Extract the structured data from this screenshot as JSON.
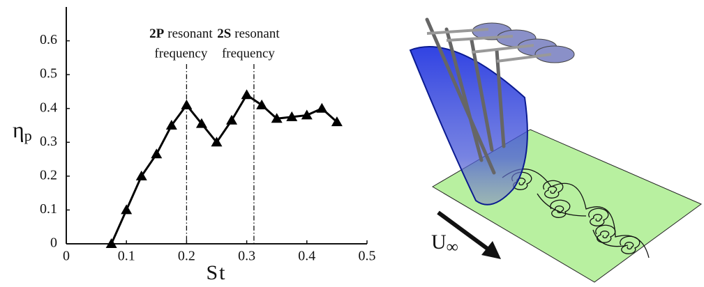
{
  "chart_data": {
    "type": "line",
    "xlabel": "St",
    "ylabel": "η",
    "ylabel_subscript": "p",
    "x": [
      0.075,
      0.1,
      0.125,
      0.15,
      0.175,
      0.2,
      0.225,
      0.25,
      0.275,
      0.3,
      0.325,
      0.35,
      0.375,
      0.4,
      0.425,
      0.45
    ],
    "values": [
      0,
      0.1,
      0.2,
      0.265,
      0.35,
      0.41,
      0.355,
      0.3,
      0.365,
      0.44,
      0.41,
      0.37,
      0.375,
      0.38,
      0.4,
      0.36
    ],
    "color": "#000000",
    "xlim": [
      0,
      0.5
    ],
    "ylim": [
      0,
      0.7
    ],
    "xticks": [
      0,
      0.1,
      0.2,
      0.3,
      0.4,
      0.5
    ],
    "yticks": [
      0,
      0.1,
      0.2,
      0.3,
      0.4,
      0.5,
      0.6
    ],
    "annotations": [
      {
        "x": 0.2,
        "bold": "2P",
        "text": "resonant",
        "text2": "frequency"
      },
      {
        "x": 0.312,
        "bold": "2S",
        "text": "resonant",
        "text2": "frequency"
      }
    ]
  },
  "diagram": {
    "flow_symbol": "U",
    "flow_subscript": "∞"
  }
}
